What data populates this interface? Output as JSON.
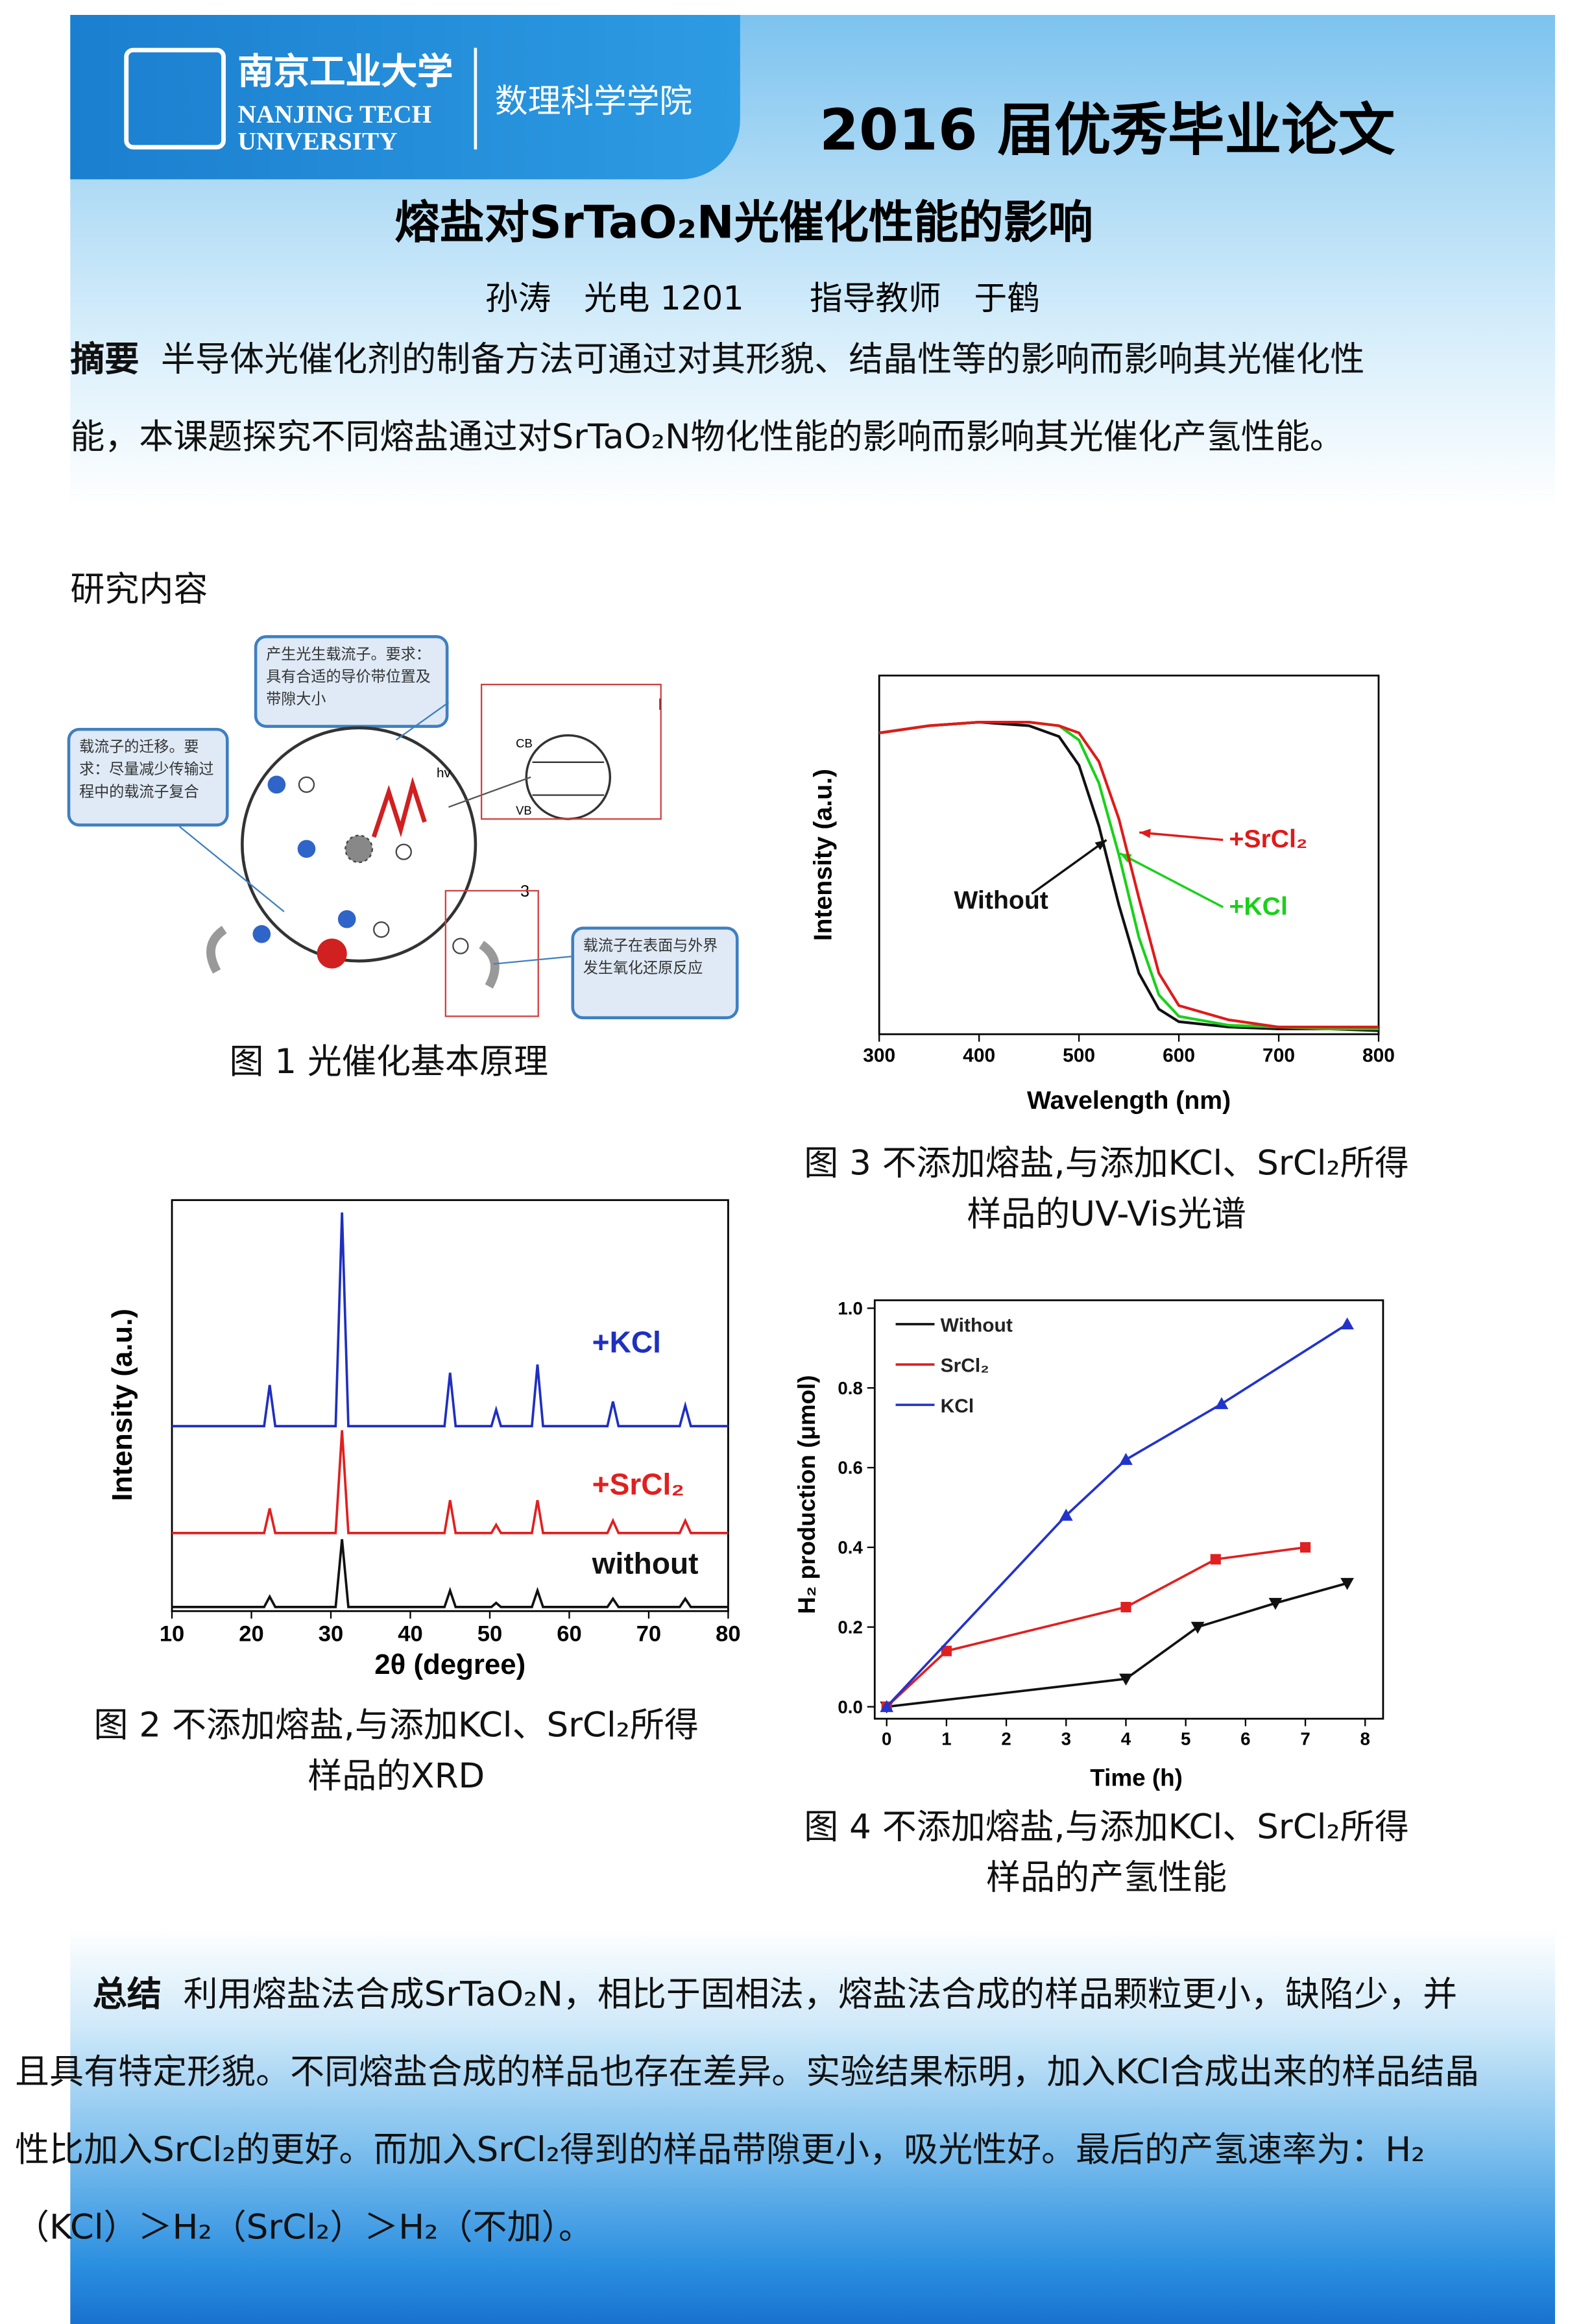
{
  "header": {
    "university_cn": "南京工业大学",
    "university_en_1": "NANJING TECH",
    "university_en_2": "UNIVERSITY",
    "school": "数理科学学院",
    "banner": "2016 届优秀毕业论文"
  },
  "title": "熔盐对SrTaO₂N光催化性能的影响",
  "authors": "孙涛　光电 1201　　指导教师　于鹤",
  "abstract": {
    "label": "摘要",
    "text": "半导体光催化剂的制备方法可通过对其形貌、结晶性等的影响而影响其光催化性能，本课题探究不同熔盐通过对SrTaO₂N物化性能的影响而影响其光催化产氢性能。"
  },
  "section": "研究内容",
  "figure1": {
    "callouts": [
      "产生光生载流子。要求：具有合适的导价带位置及带隙大小",
      "载流子的迁移。要求：尽量减少传输过程中的载流子复合",
      "载流子在表面与外界发生氧化还原反应"
    ],
    "labels": [
      "CB",
      "VB",
      "hv",
      "I",
      "3"
    ],
    "caption": "图 1 光催化基本原理"
  },
  "chart_data": [
    {
      "type": "line",
      "caption": "图 2 不添加熔盐,与添加KCl、SrCl₂所得样品的XRD",
      "x_label": "2θ (degree)",
      "y_label": "Intensity (a.u.)",
      "x": [
        10,
        21.6,
        22.3,
        23,
        30.6,
        31.4,
        32.2,
        44.3,
        45,
        45.7,
        50.2,
        50.8,
        51.4,
        55.3,
        56,
        56.7,
        64.8,
        65.5,
        66.2,
        73.9,
        74.6,
        75.3,
        80
      ],
      "xlim": [
        10,
        80
      ],
      "xticks": [
        10,
        20,
        30,
        40,
        50,
        60,
        70,
        80
      ],
      "ylim": [
        0,
        100
      ],
      "series": [
        {
          "name": "+KCl",
          "color": "#1f2fbf",
          "values": [
            45,
            45,
            55,
            45,
            45,
            97,
            45,
            45,
            58,
            45,
            45,
            49,
            45,
            45,
            60,
            45,
            45,
            51,
            45,
            45,
            50,
            45,
            45
          ]
        },
        {
          "name": "+SrCl₂",
          "color": "#e02020",
          "values": [
            19,
            19,
            25,
            19,
            19,
            44,
            19,
            19,
            27,
            19,
            19,
            21,
            19,
            19,
            27,
            19,
            19,
            22,
            19,
            19,
            22,
            19,
            19
          ]
        },
        {
          "name": "without",
          "color": "#111111",
          "values": [
            1,
            1,
            3.5,
            1,
            1,
            17.5,
            1,
            1,
            5,
            1,
            1,
            2,
            1,
            1,
            5,
            1,
            1,
            3,
            1,
            1,
            3,
            1,
            1
          ]
        }
      ]
    },
    {
      "type": "line",
      "caption": "图 3 不添加熔盐,与添加KCl、SrCl₂所得样品的UV-Vis光谱",
      "x_label": "Wavelength (nm)",
      "y_label": "Intensity (a.u.)",
      "x": [
        300,
        350,
        400,
        450,
        480,
        500,
        520,
        540,
        560,
        580,
        600,
        650,
        700,
        750,
        800
      ],
      "xlim": [
        300,
        800
      ],
      "xticks": [
        300,
        400,
        500,
        600,
        700,
        800
      ],
      "ylim": [
        0,
        100
      ],
      "series": [
        {
          "name": "Without",
          "color": "#111111",
          "values": [
            84,
            86,
            87,
            86,
            83,
            75,
            58,
            36,
            17,
            7,
            3.5,
            2,
            1.5,
            1.5,
            1
          ]
        },
        {
          "name": "+KCl",
          "color": "#19d119",
          "values": [
            84,
            86,
            87,
            87,
            86,
            82,
            70,
            50,
            27,
            11,
            5,
            2.5,
            2,
            1.5,
            1.5
          ]
        },
        {
          "name": "+SrCl₂",
          "color": "#e01a1a",
          "values": [
            84,
            86,
            87,
            87,
            86,
            84,
            76,
            60,
            38,
            17,
            8,
            4,
            2,
            2,
            2
          ]
        }
      ]
    },
    {
      "type": "line",
      "caption": "图 4 不添加熔盐,与添加KCl、SrCl₂所得样品的产氢性能",
      "x_label": "Time (h)",
      "y_label": "H₂ production (μmol)",
      "xlim": [
        -0.2,
        8.3
      ],
      "xticks": [
        0,
        1,
        2,
        3,
        4,
        5,
        6,
        7,
        8
      ],
      "ylim": [
        -0.03,
        1.02
      ],
      "yticks": [
        {
          "value": 0,
          "label": "0.0"
        },
        0.2,
        0.4,
        0.6,
        0.8,
        {
          "value": 1,
          "label": "1.0"
        }
      ],
      "legend": "upper left",
      "series": [
        {
          "name": "Without",
          "color": "#111111",
          "marker": "triangle-down",
          "x": [
            0,
            4,
            5.2,
            6.5,
            7.7
          ],
          "values": [
            0,
            0.07,
            0.2,
            0.26,
            0.31
          ]
        },
        {
          "name": "SrCl₂",
          "color": "#e02020",
          "marker": "square",
          "x": [
            0,
            1,
            4,
            5.5,
            7
          ],
          "values": [
            0,
            0.14,
            0.25,
            0.37,
            0.4
          ]
        },
        {
          "name": "KCl",
          "color": "#2233cc",
          "marker": "triangle-up",
          "x": [
            0,
            3,
            4,
            5.6,
            7.7
          ],
          "values": [
            0,
            0.48,
            0.62,
            0.76,
            0.96
          ]
        }
      ]
    }
  ],
  "summary": {
    "label": "总结",
    "text": "利用熔盐法合成SrTaO₂N，相比于固相法，熔盐法合成的样品颗粒更小，缺陷少，并且具有特定形貌。不同熔盐合成的样品也存在差异。实验结果标明，加入KCl合成出来的样品结晶性比加入SrCl₂的更好。而加入SrCl₂得到的样品带隙更小，吸光性好。最后的产氢速率为：H₂（KCl）＞H₂（SrCl₂）＞H₂（不加）。"
  }
}
